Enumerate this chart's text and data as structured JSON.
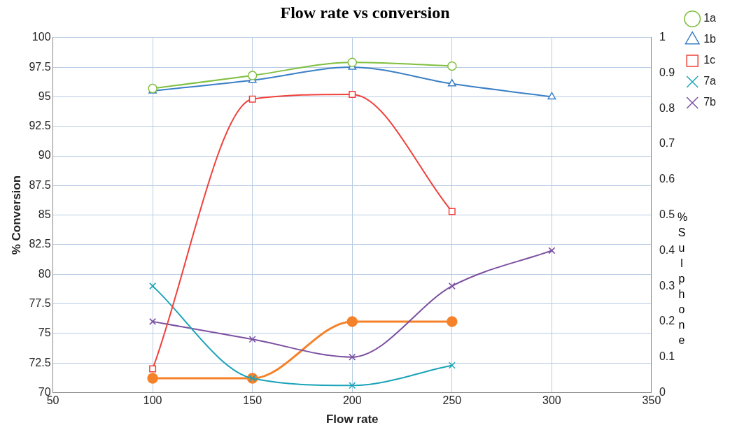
{
  "chart_data": {
    "type": "line",
    "title": "Flow rate vs conversion",
    "xlabel": "Flow rate",
    "ylabel": "% Conversion",
    "y2label": "% Sulphone",
    "xlim": [
      50,
      350
    ],
    "xticks": [
      50,
      100,
      150,
      200,
      250,
      300,
      350
    ],
    "ylim": [
      70,
      100
    ],
    "yticks": [
      70,
      72.5,
      75,
      77.5,
      80,
      82.5,
      85,
      87.5,
      90,
      92.5,
      95,
      97.5,
      100
    ],
    "y2lim": [
      0,
      1
    ],
    "y2ticks": [
      0,
      0.1,
      0.2,
      0.3,
      0.4,
      0.5,
      0.6,
      0.7,
      0.8,
      0.9,
      1
    ],
    "grid": true,
    "legend": "right",
    "series": [
      {
        "name": "1a",
        "color": "#7fbf3f",
        "marker": "circle",
        "x": [
          100,
          150,
          200,
          250
        ],
        "values": [
          95.7,
          96.8,
          97.9,
          97.6
        ]
      },
      {
        "name": "1b",
        "color": "#3a7fc6",
        "marker": "triangle",
        "x": [
          100,
          150,
          200,
          250,
          300
        ],
        "values": [
          95.5,
          96.4,
          97.5,
          96.1,
          95.0
        ]
      },
      {
        "name": "1c",
        "color": "#f0403a",
        "marker": "square",
        "x": [
          100,
          150,
          200,
          250
        ],
        "values": [
          72,
          94.8,
          95.2,
          85.3
        ]
      },
      {
        "name": "7a",
        "color": "#1aa3b8",
        "marker": "cross",
        "x": [
          100,
          150,
          200,
          250
        ],
        "values": [
          79,
          71.2,
          70.6,
          72.3
        ]
      },
      {
        "name": "7b",
        "color": "#7b4fa0",
        "marker": "cross",
        "x": [
          100,
          150,
          200,
          250,
          300
        ],
        "values": [
          76,
          74.5,
          73,
          79,
          82
        ]
      },
      {
        "color": "#f5822a",
        "marker": "circle",
        "axis": "y2",
        "x": [
          100,
          150,
          200,
          250
        ],
        "values": [
          0.04,
          0.04,
          0.2,
          0.2
        ]
      }
    ]
  }
}
